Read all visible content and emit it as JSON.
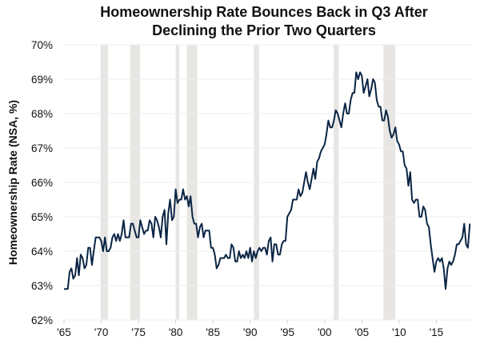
{
  "chart_data": {
    "type": "line",
    "title": "Homeownership Rate Bounces Back in Q3 After Declining the Prior Two Quarters",
    "title_lines": [
      "Homeownership Rate Bounces Back in Q3 After",
      "Declining the Prior Two Quarters"
    ],
    "xlabel": "",
    "ylabel": "Homeownership Rate (NSA, %)",
    "xlim": [
      1965,
      2019.9
    ],
    "ylim": [
      62,
      70
    ],
    "grid": true,
    "x_ticks": [
      1965,
      1970,
      1975,
      1980,
      1985,
      1990,
      1995,
      2000,
      2005,
      2010,
      2015
    ],
    "x_tick_labels": [
      "'65",
      "'70",
      "'75",
      "'80",
      "'85",
      "'90",
      "'95",
      "'00",
      "'05",
      "'10",
      "'15"
    ],
    "y_ticks": [
      62,
      63,
      64,
      65,
      66,
      67,
      68,
      69,
      70
    ],
    "y_tick_labels": [
      "62%",
      "63%",
      "64%",
      "65%",
      "66%",
      "67%",
      "68%",
      "69%",
      "70%"
    ],
    "colors": {
      "line": "#0b2545",
      "recession": "#e8e6e3",
      "grid": "#ececec"
    },
    "recessions": [
      [
        1969.9,
        1970.9
      ],
      [
        1973.9,
        1975.2
      ],
      [
        1980.0,
        1980.5
      ],
      [
        1981.5,
        1982.9
      ],
      [
        1990.5,
        1991.2
      ],
      [
        2001.2,
        2001.9
      ],
      [
        2007.9,
        2009.5
      ]
    ],
    "series": [
      {
        "name": "Homeownership Rate (NSA)",
        "points": [
          [
            1965,
            62.9
          ],
          [
            1965.5,
            62.9
          ],
          [
            1965.75,
            63.4
          ],
          [
            1966,
            63.5
          ],
          [
            1966.25,
            63.2
          ],
          [
            1966.5,
            63.3
          ],
          [
            1966.75,
            63.8
          ],
          [
            1967,
            63.3
          ],
          [
            1967.25,
            63.9
          ],
          [
            1967.5,
            63.8
          ],
          [
            1967.75,
            63.5
          ],
          [
            1968,
            63.6
          ],
          [
            1968.25,
            64.1
          ],
          [
            1968.5,
            64.1
          ],
          [
            1968.75,
            63.6
          ],
          [
            1969,
            64.0
          ],
          [
            1969.25,
            64.4
          ],
          [
            1969.5,
            64.4
          ],
          [
            1969.75,
            64.4
          ],
          [
            1970,
            64.3
          ],
          [
            1970.25,
            64.0
          ],
          [
            1970.5,
            64.4
          ],
          [
            1970.75,
            64.0
          ],
          [
            1971,
            64.0
          ],
          [
            1971.25,
            64.1
          ],
          [
            1971.5,
            64.4
          ],
          [
            1971.75,
            64.5
          ],
          [
            1972,
            64.3
          ],
          [
            1972.25,
            64.5
          ],
          [
            1972.5,
            64.3
          ],
          [
            1972.75,
            64.5
          ],
          [
            1973,
            64.9
          ],
          [
            1973.25,
            64.4
          ],
          [
            1973.5,
            64.4
          ],
          [
            1973.75,
            64.4
          ],
          [
            1974,
            64.8
          ],
          [
            1974.25,
            64.8
          ],
          [
            1974.5,
            64.6
          ],
          [
            1974.75,
            64.4
          ],
          [
            1975,
            64.4
          ],
          [
            1975.25,
            64.9
          ],
          [
            1975.5,
            64.7
          ],
          [
            1975.75,
            64.5
          ],
          [
            1976,
            64.6
          ],
          [
            1976.25,
            64.6
          ],
          [
            1976.5,
            64.9
          ],
          [
            1976.75,
            64.8
          ],
          [
            1977,
            64.4
          ],
          [
            1977.25,
            65.0
          ],
          [
            1977.5,
            64.9
          ],
          [
            1977.75,
            64.7
          ],
          [
            1978,
            64.4
          ],
          [
            1978.25,
            65.0
          ],
          [
            1978.5,
            65.2
          ],
          [
            1978.75,
            64.2
          ],
          [
            1979,
            65.1
          ],
          [
            1979.25,
            65.5
          ],
          [
            1979.5,
            64.9
          ],
          [
            1979.75,
            65.0
          ],
          [
            1980,
            65.8
          ],
          [
            1980.25,
            65.4
          ],
          [
            1980.5,
            65.5
          ],
          [
            1980.75,
            65.5
          ],
          [
            1981,
            65.8
          ],
          [
            1981.25,
            65.5
          ],
          [
            1981.5,
            65.6
          ],
          [
            1981.75,
            65.3
          ],
          [
            1982,
            65.6
          ],
          [
            1982.25,
            65.0
          ],
          [
            1982.5,
            64.8
          ],
          [
            1982.75,
            64.8
          ],
          [
            1983,
            64.4
          ],
          [
            1983.25,
            64.7
          ],
          [
            1983.5,
            64.8
          ],
          [
            1983.75,
            64.4
          ],
          [
            1984,
            64.6
          ],
          [
            1984.25,
            64.6
          ],
          [
            1984.5,
            64.6
          ],
          [
            1984.75,
            64.1
          ],
          [
            1985,
            64.1
          ],
          [
            1985.25,
            63.9
          ],
          [
            1985.5,
            63.5
          ],
          [
            1985.75,
            63.6
          ],
          [
            1986,
            63.8
          ],
          [
            1986.5,
            63.8
          ],
          [
            1986.75,
            63.9
          ],
          [
            1987,
            63.8
          ],
          [
            1987.25,
            63.8
          ],
          [
            1987.5,
            64.2
          ],
          [
            1987.75,
            64.1
          ],
          [
            1988,
            63.7
          ],
          [
            1988.25,
            63.7
          ],
          [
            1988.5,
            64.0
          ],
          [
            1988.75,
            63.8
          ],
          [
            1989,
            63.9
          ],
          [
            1989.25,
            63.8
          ],
          [
            1989.5,
            64.0
          ],
          [
            1989.75,
            63.8
          ],
          [
            1990,
            64.1
          ],
          [
            1990.25,
            63.7
          ],
          [
            1990.5,
            64.0
          ],
          [
            1990.75,
            63.8
          ],
          [
            1991,
            64.0
          ],
          [
            1991.25,
            64.1
          ],
          [
            1991.5,
            64.0
          ],
          [
            1991.75,
            64.1
          ],
          [
            1992,
            64.1
          ],
          [
            1992.25,
            63.9
          ],
          [
            1992.5,
            64.3
          ],
          [
            1992.75,
            64.4
          ],
          [
            1993,
            63.7
          ],
          [
            1993.25,
            64.2
          ],
          [
            1993.5,
            64.2
          ],
          [
            1993.75,
            63.9
          ],
          [
            1994,
            63.9
          ],
          [
            1994.25,
            64.2
          ],
          [
            1994.5,
            64.3
          ],
          [
            1994.75,
            64.3
          ],
          [
            1995,
            65.0
          ],
          [
            1995.5,
            65.2
          ],
          [
            1995.75,
            65.5
          ],
          [
            1996,
            65.5
          ],
          [
            1996.25,
            65.5
          ],
          [
            1996.5,
            65.8
          ],
          [
            1996.75,
            65.6
          ],
          [
            1997,
            65.7
          ],
          [
            1997.5,
            66.3
          ],
          [
            1997.75,
            66.0
          ],
          [
            1998,
            65.8
          ],
          [
            1998.25,
            66.1
          ],
          [
            1998.5,
            66.4
          ],
          [
            1998.75,
            66.1
          ],
          [
            1999,
            66.6
          ],
          [
            1999.25,
            66.7
          ],
          [
            1999.5,
            66.9
          ],
          [
            1999.75,
            67.0
          ],
          [
            2000,
            67.1
          ],
          [
            2000.25,
            67.4
          ],
          [
            2000.5,
            67.8
          ],
          [
            2000.75,
            67.6
          ],
          [
            2001,
            67.6
          ],
          [
            2001.25,
            67.8
          ],
          [
            2001.5,
            68.1
          ],
          [
            2001.75,
            68.0
          ],
          [
            2002,
            67.8
          ],
          [
            2002.25,
            67.6
          ],
          [
            2002.5,
            68.0
          ],
          [
            2002.75,
            68.3
          ],
          [
            2003,
            68.0
          ],
          [
            2003.25,
            68.0
          ],
          [
            2003.5,
            68.4
          ],
          [
            2003.75,
            68.6
          ],
          [
            2004,
            68.6
          ],
          [
            2004.25,
            69.2
          ],
          [
            2004.5,
            69.0
          ],
          [
            2004.75,
            69.2
          ],
          [
            2005,
            69.1
          ],
          [
            2005.25,
            68.6
          ],
          [
            2005.5,
            68.8
          ],
          [
            2005.75,
            69.0
          ],
          [
            2006,
            68.5
          ],
          [
            2006.25,
            68.7
          ],
          [
            2006.5,
            69.0
          ],
          [
            2006.75,
            68.9
          ],
          [
            2007,
            68.4
          ],
          [
            2007.25,
            68.2
          ],
          [
            2007.5,
            68.2
          ],
          [
            2007.75,
            67.8
          ],
          [
            2008,
            67.8
          ],
          [
            2008.25,
            68.1
          ],
          [
            2008.5,
            67.9
          ],
          [
            2008.75,
            67.5
          ],
          [
            2009,
            67.3
          ],
          [
            2009.25,
            67.4
          ],
          [
            2009.5,
            67.6
          ],
          [
            2009.75,
            67.2
          ],
          [
            2010,
            67.1
          ],
          [
            2010.25,
            66.9
          ],
          [
            2010.5,
            66.9
          ],
          [
            2010.75,
            66.5
          ],
          [
            2011,
            66.4
          ],
          [
            2011.25,
            65.9
          ],
          [
            2011.5,
            66.3
          ],
          [
            2011.75,
            65.5
          ],
          [
            2012,
            65.4
          ],
          [
            2012.25,
            65.5
          ],
          [
            2012.5,
            65.5
          ],
          [
            2012.75,
            65.0
          ],
          [
            2013,
            65.0
          ],
          [
            2013.25,
            65.3
          ],
          [
            2013.5,
            65.2
          ],
          [
            2013.75,
            64.8
          ],
          [
            2014,
            64.7
          ],
          [
            2014.25,
            64.2
          ],
          [
            2014.5,
            63.8
          ],
          [
            2014.75,
            63.4
          ],
          [
            2015,
            63.7
          ],
          [
            2015.25,
            63.8
          ],
          [
            2015.5,
            63.7
          ],
          [
            2015.75,
            63.8
          ],
          [
            2016,
            63.5
          ],
          [
            2016.25,
            62.9
          ],
          [
            2016.5,
            63.5
          ],
          [
            2016.75,
            63.7
          ],
          [
            2017,
            63.6
          ],
          [
            2017.25,
            63.7
          ],
          [
            2017.5,
            63.9
          ],
          [
            2017.75,
            64.2
          ],
          [
            2018,
            64.2
          ],
          [
            2018.25,
            64.3
          ],
          [
            2018.5,
            64.4
          ],
          [
            2018.75,
            64.8
          ],
          [
            2019,
            64.2
          ],
          [
            2019.25,
            64.1
          ],
          [
            2019.5,
            64.8
          ]
        ]
      }
    ]
  }
}
